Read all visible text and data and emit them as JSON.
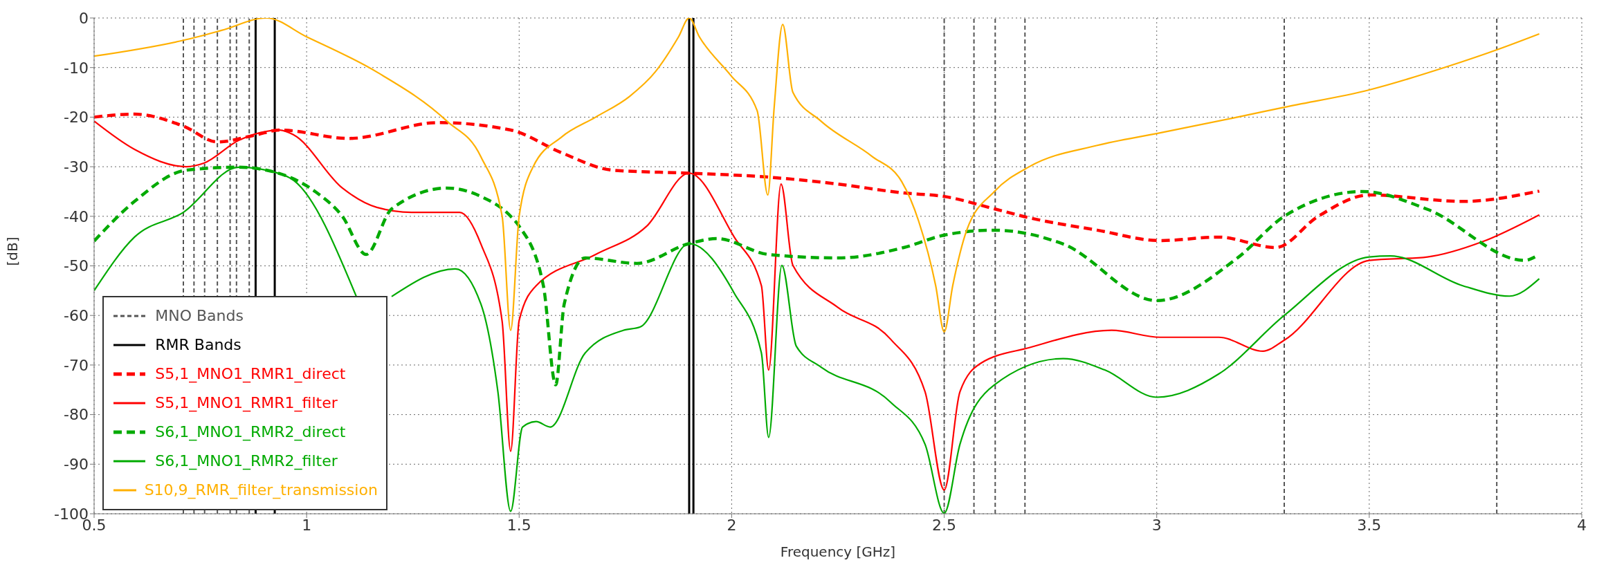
{
  "chart_data": {
    "type": "line",
    "xlabel": "Frequency [GHz]",
    "ylabel": "[dB]",
    "xlim": [
      0.5,
      4
    ],
    "xticks": [
      0.5,
      1,
      1.5,
      2,
      2.5,
      3,
      3.5,
      4
    ],
    "ylim": [
      -100,
      0
    ],
    "yticks": [
      0,
      -10,
      -20,
      -30,
      -40,
      -50,
      -60,
      -70,
      -80,
      -90,
      -100
    ],
    "grid": true,
    "legend": "bottom left",
    "marker": "none",
    "ref_lines": [
      {
        "axis": "x",
        "value": 0.71,
        "label": "MNO Bands",
        "color": "#555555",
        "line_style": "dashed"
      },
      {
        "axis": "x",
        "value": 0.735,
        "color": "#555555",
        "line_style": "dashed"
      },
      {
        "axis": "x",
        "value": 0.76,
        "color": "#555555",
        "line_style": "dashed"
      },
      {
        "axis": "x",
        "value": 0.79,
        "color": "#555555",
        "line_style": "dashed"
      },
      {
        "axis": "x",
        "value": 0.82,
        "color": "#555555",
        "line_style": "dashed"
      },
      {
        "axis": "x",
        "value": 0.835,
        "color": "#555555",
        "line_style": "dashed"
      },
      {
        "axis": "x",
        "value": 0.865,
        "color": "#555555",
        "line_style": "dashed"
      },
      {
        "axis": "x",
        "value": 2.5,
        "color": "#555555",
        "line_style": "dashed"
      },
      {
        "axis": "x",
        "value": 2.57,
        "color": "#555555",
        "line_style": "dashed"
      },
      {
        "axis": "x",
        "value": 2.62,
        "color": "#555555",
        "line_style": "dashed"
      },
      {
        "axis": "x",
        "value": 2.69,
        "color": "#555555",
        "line_style": "dashed"
      },
      {
        "axis": "x",
        "value": 3.3,
        "color": "#555555",
        "line_style": "dashed"
      },
      {
        "axis": "x",
        "value": 3.8,
        "color": "#555555",
        "line_style": "dashed"
      },
      {
        "axis": "x",
        "value": 0.88,
        "label": "RMR Bands",
        "color": "#000000",
        "line_style": "solid"
      },
      {
        "axis": "x",
        "value": 0.925,
        "color": "#000000",
        "line_style": "solid"
      },
      {
        "axis": "x",
        "value": 1.9,
        "color": "#000000",
        "line_style": "solid"
      },
      {
        "axis": "x",
        "value": 1.91,
        "color": "#000000",
        "line_style": "solid"
      }
    ],
    "series": [
      {
        "name": "S5,1_MNO1_RMR1_direct",
        "color": "#ff0000",
        "line_style": "dashed",
        "x": [
          0.5,
          0.595,
          0.71,
          0.79,
          0.88,
          0.937,
          1.1,
          1.31,
          1.48,
          1.6,
          1.72,
          1.9,
          2.087,
          2.25,
          2.405,
          2.5,
          2.618,
          2.7,
          2.86,
          3.008,
          3.146,
          3.28,
          3.38,
          3.5,
          3.72,
          3.9
        ],
        "values": [
          -20,
          -19.4,
          -21.8,
          -25,
          -23.6,
          -22.6,
          -24.3,
          -21.1,
          -22.6,
          -27.2,
          -30.7,
          -31.3,
          -32.1,
          -33.5,
          -35.3,
          -36,
          -38.5,
          -40.3,
          -42.8,
          -44.9,
          -44.2,
          -46.3,
          -40,
          -35.7,
          -37,
          -34.9
        ]
      },
      {
        "name": "S5,1_MNO1_RMR1_filter",
        "color": "#ff0000",
        "line_style": "solid",
        "x": [
          0.5,
          0.595,
          0.717,
          0.758,
          0.84,
          0.937,
          0.97,
          1.084,
          1.165,
          1.247,
          1.36,
          1.41,
          1.46,
          1.48,
          1.5,
          1.54,
          1.68,
          1.8,
          1.9,
          2.006,
          2.07,
          2.087,
          2.116,
          2.144,
          2.25,
          2.374,
          2.455,
          2.5,
          2.537,
          2.585,
          2.7,
          2.894,
          3.008,
          3.146,
          3.25,
          3.3,
          3.5,
          3.637,
          3.764,
          3.9
        ],
        "values": [
          -20.8,
          -26.5,
          -30,
          -29.3,
          -24.7,
          -22.6,
          -23.6,
          -34.3,
          -38.2,
          -39.2,
          -39.2,
          -45.6,
          -61.2,
          -87.4,
          -61,
          -54,
          -47.7,
          -42,
          -31.3,
          -44.2,
          -54,
          -71,
          -33.5,
          -49.9,
          -58.4,
          -64.8,
          -75.4,
          -95.2,
          -75.4,
          -69.7,
          -66.5,
          -63,
          -64.4,
          -64.4,
          -67.2,
          -65,
          -48.9,
          -48.2,
          -45.2,
          -39.7
        ]
      },
      {
        "name": "S6,1_MNO1_RMR2_direct",
        "color": "#00aa00",
        "line_style": "dashed",
        "x": [
          0.5,
          0.595,
          0.717,
          0.84,
          0.937,
          1.02,
          1.084,
          1.14,
          1.2,
          1.33,
          1.41,
          1.48,
          1.5,
          1.557,
          1.586,
          1.606,
          1.655,
          1.777,
          1.9,
          1.965,
          2.087,
          2.25,
          2.405,
          2.5,
          2.618,
          2.78,
          3.0,
          3.19,
          3.3,
          3.485,
          3.637,
          3.866,
          3.89
        ],
        "values": [
          -45,
          -37,
          -30.7,
          -30.1,
          -31.4,
          -35,
          -40,
          -47.7,
          -38.5,
          -34.3,
          -36,
          -40,
          -42,
          -54,
          -74,
          -57.7,
          -48.4,
          -49.5,
          -45.5,
          -44.5,
          -47.7,
          -48.4,
          -46.3,
          -43.8,
          -42.8,
          -45.6,
          -57,
          -48.4,
          -40,
          -35,
          -38.6,
          -48.9,
          -48.2
        ]
      },
      {
        "name": "S6,1_MNO1_RMR2_filter",
        "color": "#00aa00",
        "line_style": "solid",
        "x": [
          0.5,
          0.595,
          0.71,
          0.84,
          0.937,
          0.97,
          1.117,
          1.16,
          1.2,
          1.35,
          1.41,
          1.45,
          1.48,
          1.508,
          1.54,
          1.573,
          1.655,
          1.745,
          1.785,
          1.9,
          2.006,
          2.07,
          2.087,
          2.118,
          2.152,
          2.21,
          2.374,
          2.455,
          2.5,
          2.537,
          2.618,
          2.78,
          2.878,
          3.0,
          3.146,
          3.3,
          3.5,
          3.55,
          3.72,
          3.83,
          3.9
        ],
        "values": [
          -55,
          -44.2,
          -39.2,
          -30.1,
          -31.4,
          -32.8,
          -56.2,
          null,
          -56.2,
          -50.6,
          -57.7,
          -75.4,
          -99.5,
          -82.5,
          -81.4,
          -82.5,
          -67.6,
          -63,
          -62.3,
          -45.5,
          -55.5,
          -67.6,
          -84.6,
          -49.9,
          -66.2,
          -70.4,
          -77.5,
          -86,
          -99.9,
          -86,
          -74,
          -68.7,
          -71,
          -76.5,
          -71.8,
          -60,
          -48.2,
          -48,
          -54,
          -56.1,
          -52.6
        ]
      },
      {
        "name": "S10,9_RMR_filter_transmission",
        "color": "#ffb000",
        "line_style": "solid",
        "x": [
          0.5,
          0.71,
          0.8,
          0.905,
          1.0,
          1.165,
          1.33,
          1.41,
          1.46,
          1.48,
          1.5,
          1.533,
          1.6,
          1.68,
          1.76,
          1.82,
          1.875,
          1.9,
          1.924,
          1.998,
          2.06,
          2.085,
          2.1,
          2.12,
          2.144,
          2.21,
          2.33,
          2.4,
          2.44,
          2.48,
          2.5,
          2.52,
          2.553,
          2.618,
          2.7,
          2.86,
          3.0,
          3.19,
          3.3,
          3.5,
          3.68,
          3.807,
          3.9
        ],
        "values": [
          -7.7,
          -4.5,
          -2.5,
          0,
          -3.8,
          -10.9,
          -20.8,
          -28,
          -40,
          -63,
          -40,
          -30,
          -24,
          -20,
          -15.8,
          -10.9,
          -3.8,
          0,
          -3.8,
          -11.6,
          -18.7,
          -35.7,
          -18,
          -1.3,
          -15,
          -20.8,
          -27.9,
          -33,
          -41,
          -54,
          -63.3,
          -54,
          -42.8,
          -35,
          -30,
          -25.7,
          -23.3,
          -20,
          -18,
          -14.5,
          -9.9,
          -6.2,
          -3.2
        ]
      }
    ]
  }
}
